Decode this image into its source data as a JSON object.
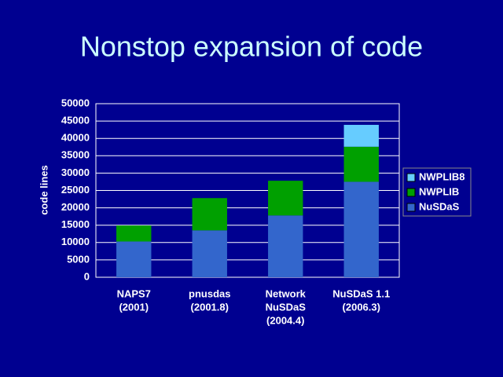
{
  "chart_data": {
    "type": "stacked_bar",
    "title": "Nonstop expansion of code",
    "y_label": "code lines",
    "categories": [
      [
        "NAPS7",
        "(2001)"
      ],
      [
        "pnusdas",
        "(2001.8)"
      ],
      [
        "Network",
        "NuSDaS",
        "(2004.4)"
      ],
      [
        "NuSDaS 1.1",
        "(2006.3)"
      ]
    ],
    "series": [
      {
        "name": "NuSDaS",
        "color": "#3366cc",
        "values": [
          10300,
          13500,
          17800,
          27500
        ]
      },
      {
        "name": "NWPLIB",
        "color": "#00a000",
        "values": [
          4600,
          9300,
          10000,
          10100
        ]
      },
      {
        "name": "NWPLIB8",
        "color": "#66ccff",
        "values": [
          null,
          null,
          null,
          6300
        ]
      }
    ],
    "ylim": [
      0,
      50000
    ],
    "yticks": [
      0,
      5000,
      10000,
      15000,
      20000,
      25000,
      30000,
      35000,
      40000,
      45000,
      50000
    ],
    "grid": true,
    "legend": "right"
  }
}
